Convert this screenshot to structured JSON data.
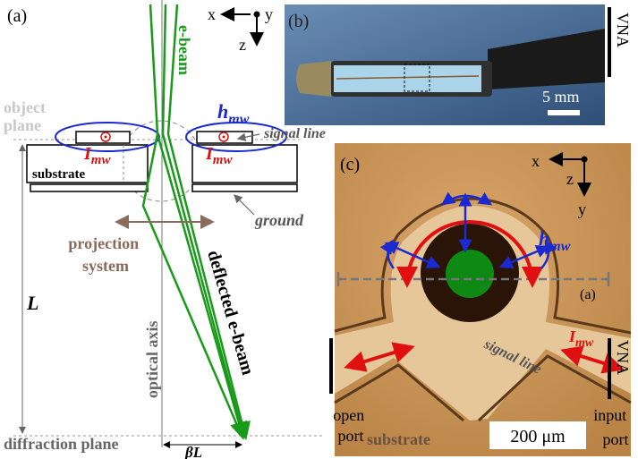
{
  "panel_a": {
    "label": "(a)",
    "axes": {
      "x": "x",
      "y": "y",
      "z": "z"
    },
    "beam": "e-beam",
    "object_plane": [
      "object",
      "plane"
    ],
    "h_mw": {
      "base": "h",
      "sub": "mw"
    },
    "signal_line": "signal line",
    "currents": [
      {
        "base": "I",
        "sub": "mw"
      },
      {
        "base": "I",
        "sub": "mw"
      }
    ],
    "substrate": "substrate",
    "ground": "ground",
    "projection_system": [
      "projection",
      "system"
    ],
    "optical_axis": "optical axis",
    "deflected_beam": "deflected e-beam",
    "length": "L",
    "diffraction_plane": "diffraction plane",
    "deflection": "βL"
  },
  "panel_b": {
    "label": "(b)",
    "vna": "VNA",
    "scale_bar": "5 mm"
  },
  "panel_c": {
    "label": "(c)",
    "axes": {
      "x": "x",
      "z": "z",
      "y": "y"
    },
    "h_mw": {
      "base": "h",
      "sub": "mw"
    },
    "inset_ref": "(a)",
    "i_mw": {
      "base": "I",
      "sub": "mw"
    },
    "signal_line": "signal line",
    "vna": "VNA",
    "open_port": [
      "open",
      "port"
    ],
    "substrate": "substrate",
    "scale_bar": "200 μm",
    "input_port": [
      "input",
      "port"
    ]
  }
}
